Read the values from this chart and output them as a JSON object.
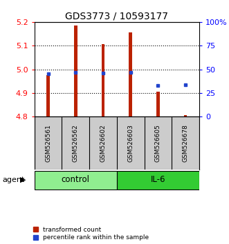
{
  "title": "GDS3773 / 10593177",
  "samples": [
    "GSM526561",
    "GSM526562",
    "GSM526602",
    "GSM526603",
    "GSM526605",
    "GSM526678"
  ],
  "groups": [
    {
      "name": "control",
      "color": "#90EE90",
      "samples_idx": [
        0,
        1,
        2
      ]
    },
    {
      "name": "IL-6",
      "color": "#33CC33",
      "samples_idx": [
        3,
        4,
        5
      ]
    }
  ],
  "red_values": [
    4.975,
    5.185,
    5.105,
    5.155,
    4.905,
    4.808
  ],
  "red_base": 4.8,
  "blue_values_pct": [
    45,
    47,
    46,
    47,
    33,
    34
  ],
  "ylim_left": [
    4.8,
    5.2
  ],
  "ylim_right": [
    0,
    100
  ],
  "yticks_left": [
    4.8,
    4.9,
    5.0,
    5.1,
    5.2
  ],
  "yticks_right": [
    0,
    25,
    50,
    75,
    100
  ],
  "bar_color": "#BB2200",
  "dot_color": "#2244CC",
  "bar_width": 0.12,
  "grid_color": "#000000",
  "bg_color": "#ffffff",
  "plot_bg": "#ffffff",
  "sample_bg": "#cccccc",
  "agent_label": "agent",
  "legend_items": [
    "transformed count",
    "percentile rank within the sample"
  ]
}
